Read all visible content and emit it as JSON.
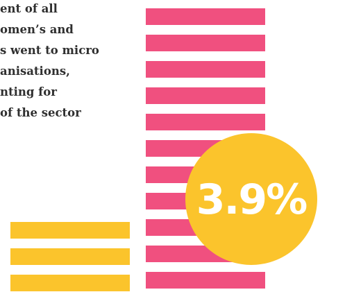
{
  "text_lines": [
    "ent of all",
    "omen’s and",
    "s went to micro",
    "anisations,",
    "nting for",
    "of the sector"
  ],
  "highlight": "3.9%"
}
